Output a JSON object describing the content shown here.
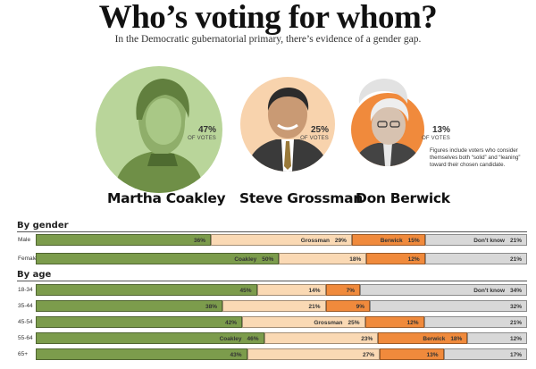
{
  "header": {
    "title": "Who’s voting for whom?",
    "subtitle": "In the Democratic gubernatorial primary, there’s evidence of a gender gap."
  },
  "candidates": [
    {
      "name": "Martha Coakley",
      "percent": "47%",
      "of_votes": "OF VOTES",
      "share": 47,
      "bg": "#b9d59a",
      "icon": "coakley-portrait-icon"
    },
    {
      "name": "Steve Grossman",
      "percent": "25%",
      "of_votes": "OF VOTES",
      "share": 25,
      "bg": "#f8d3ad",
      "icon": "grossman-portrait-icon"
    },
    {
      "name": "Don Berwick",
      "percent": "13%",
      "of_votes": "OF VOTES",
      "share": 13,
      "bg": "#f08a3c",
      "icon": "berwick-portrait-icon"
    }
  ],
  "note": "Figures include voters who consider themselves both “solid” and “leaning” toward their chosen candidate.",
  "colors": {
    "coakley": "#7c9c4c",
    "grossman": "#fad9b4",
    "berwick": "#f08a3c",
    "dontknow": "#d8d8d8"
  },
  "chart_data": {
    "type": "bar",
    "stacked": true,
    "orientation": "horizontal",
    "legend": "inline",
    "series": [
      {
        "name": "Coakley",
        "key": "coakley"
      },
      {
        "name": "Grossman",
        "key": "grossman"
      },
      {
        "name": "Berwick",
        "key": "berwick"
      },
      {
        "name": "Don't know",
        "key": "dontknow"
      }
    ],
    "groups": [
      {
        "title": "By gender",
        "rows": [
          {
            "label": "Male",
            "values": [
              36,
              29,
              15,
              21
            ],
            "named": [
              false,
              true,
              true,
              true
            ]
          },
          {
            "label": "Female",
            "values": [
              50,
              18,
              12,
              21
            ],
            "named": [
              true,
              false,
              false,
              false
            ]
          }
        ]
      },
      {
        "title": "By age",
        "rows": [
          {
            "label": "18-34",
            "values": [
              45,
              14,
              7,
              34
            ],
            "named": [
              false,
              false,
              false,
              true
            ]
          },
          {
            "label": "35-44",
            "values": [
              38,
              21,
              9,
              32
            ],
            "named": [
              false,
              false,
              false,
              false
            ]
          },
          {
            "label": "45-54",
            "values": [
              42,
              25,
              12,
              21
            ],
            "named": [
              false,
              true,
              false,
              false
            ]
          },
          {
            "label": "55-64",
            "values": [
              46,
              23,
              18,
              12
            ],
            "named": [
              true,
              false,
              true,
              false
            ]
          },
          {
            "label": "65+",
            "values": [
              43,
              27,
              13,
              17
            ],
            "named": [
              false,
              false,
              false,
              false
            ]
          }
        ]
      }
    ]
  }
}
